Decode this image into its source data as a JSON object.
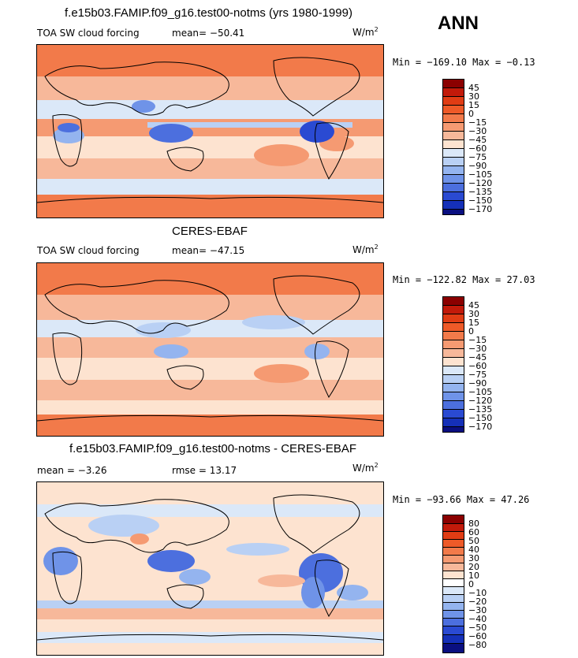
{
  "season_label": "ANN",
  "units": "W/m",
  "units_exp": "2",
  "panels": [
    {
      "title": "f.e15b03.FAMIP.f09_g16.test00-notms (yrs 1980-1999)",
      "left_label": "TOA SW cloud forcing",
      "center_label": "mean=  −50.41",
      "minmax": "Min = −169.10  Max =   −0.13",
      "levels": [
        "45",
        "30",
        "15",
        "0",
        "−15",
        "−30",
        "−45",
        "−60",
        "−75",
        "−90",
        "−105",
        "−120",
        "−135",
        "−150",
        "−170"
      ]
    },
    {
      "title": "CERES-EBAF",
      "left_label": "TOA SW cloud forcing",
      "center_label": "mean= −47.15",
      "minmax": "Min = −122.82  Max =   27.03",
      "levels": [
        "45",
        "30",
        "15",
        "0",
        "−15",
        "−30",
        "−45",
        "−60",
        "−75",
        "−90",
        "−105",
        "−120",
        "−135",
        "−150",
        "−170"
      ]
    },
    {
      "title": "f.e15b03.FAMIP.f09_g16.test00-notms - CERES-EBAF",
      "left_label": "mean =    −3.26",
      "center_label": "rmse =   13.17",
      "minmax": "Min = −93.66  Max =   47.26",
      "levels": [
        "80",
        "60",
        "50",
        "40",
        "30",
        "20",
        "10",
        "0",
        "−10",
        "−20",
        "−30",
        "−40",
        "−50",
        "−60",
        "−80"
      ]
    }
  ],
  "colors": {
    "abs_scale": [
      "#8b0000",
      "#c21a0a",
      "#e03c14",
      "#ee5a28",
      "#f27a4a",
      "#f59a72",
      "#f7b89a",
      "#fde3d0",
      "#dbe8f8",
      "#b9d0f4",
      "#94b4ef",
      "#6f93e8",
      "#4c6fde",
      "#2a4ad2",
      "#1530b8",
      "#0a0f80"
    ],
    "diff_scale": [
      "#8b0000",
      "#c21a0a",
      "#e03c14",
      "#ee5a28",
      "#f27a4a",
      "#f59a72",
      "#f7b89a",
      "#fde3d0",
      "#ffffff",
      "#dbe8f8",
      "#b9d0f4",
      "#94b4ef",
      "#6f93e8",
      "#4c6fde",
      "#2a4ad2",
      "#1530b8",
      "#0a0f80"
    ],
    "land_outline": "#000000"
  }
}
